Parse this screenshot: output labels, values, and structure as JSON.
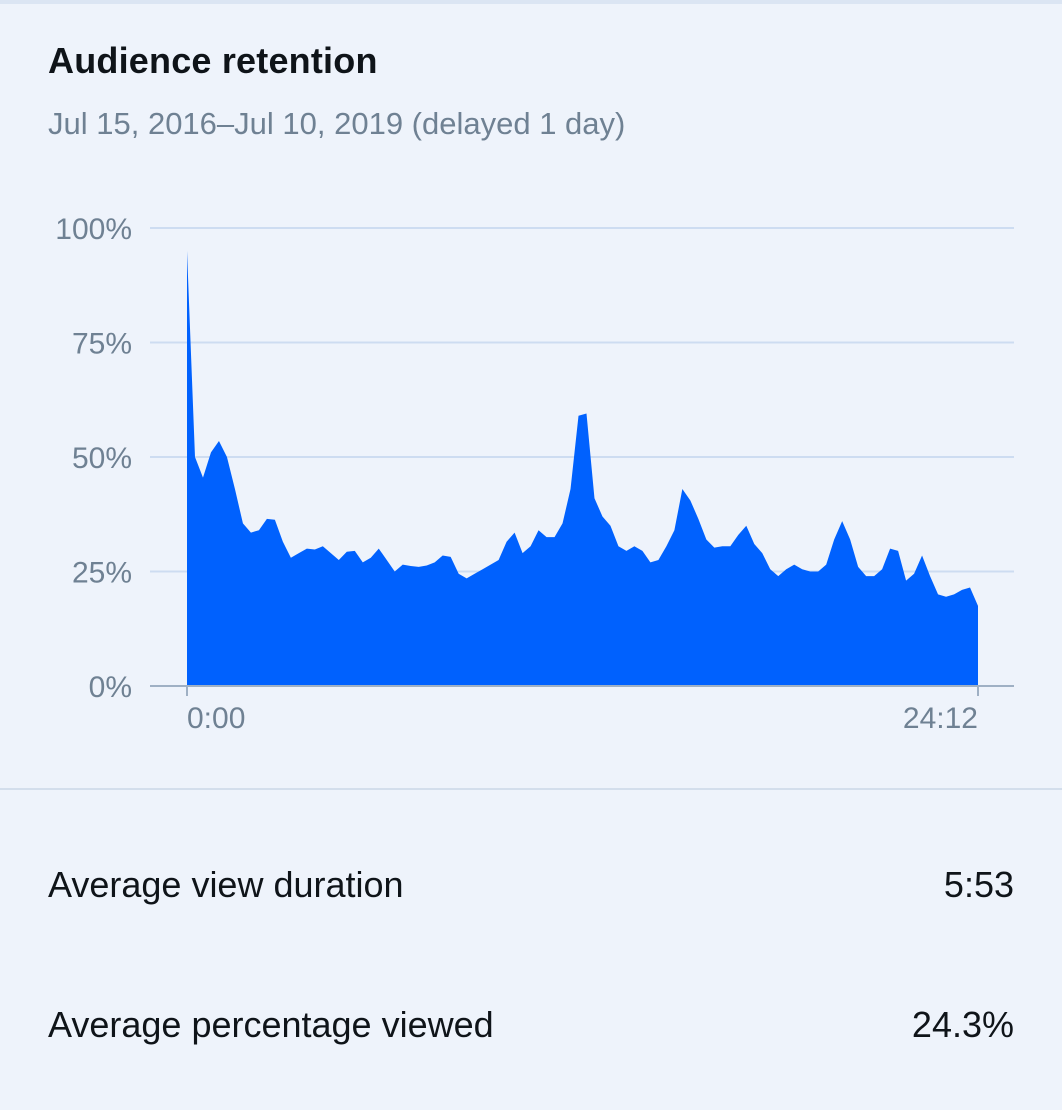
{
  "card": {
    "title": "Audience retention",
    "subtitle": "Jul 15, 2016–Jul 10, 2019 (delayed 1 day)"
  },
  "metrics": [
    {
      "label": "Average view duration",
      "value": "5:53"
    },
    {
      "label": "Average percentage viewed",
      "value": "24.3%"
    }
  ],
  "colors": {
    "area": "#0061fe",
    "grid": "#cddcf1",
    "axis": "#9fb0c4"
  },
  "chart_data": {
    "type": "area",
    "xlabel": "",
    "ylabel": "",
    "ylim": [
      0,
      100
    ],
    "y_ticks": [
      "0%",
      "25%",
      "50%",
      "75%",
      "100%"
    ],
    "y_tick_values": [
      0,
      25,
      50,
      75,
      100
    ],
    "x_tick_labels": [
      "0:00",
      "24:12"
    ],
    "xlim_seconds": [
      0,
      1452
    ],
    "grid": true,
    "series": [
      {
        "values": [
          95,
          50,
          45.5,
          51,
          53.5,
          50,
          43,
          35.5,
          33.5,
          34,
          36.5,
          36.3,
          31.5,
          28,
          29,
          30,
          29.8,
          30.5,
          29,
          27.5,
          29.3,
          29.5,
          27,
          28,
          30,
          27.5,
          25,
          26.5,
          26.2,
          26,
          26.3,
          27,
          28.5,
          28.2,
          24.5,
          23.5,
          24.5,
          25.5,
          26.5,
          27.5,
          31.5,
          33.5,
          29,
          30.5,
          34,
          32.5,
          32.5,
          35.5,
          43,
          59,
          59.5,
          41,
          37,
          35,
          30.5,
          29.5,
          30.5,
          29.5,
          27,
          27.5,
          30.5,
          34,
          43,
          40.5,
          36.5,
          32,
          30.2,
          30.5,
          30.5,
          33,
          35,
          31,
          29,
          25.5,
          24,
          25.5,
          26.5,
          25.5,
          25,
          25,
          26.5,
          32,
          36,
          32,
          26,
          24,
          24,
          25.5,
          30,
          29.5,
          23,
          24.5,
          28.5,
          24,
          20,
          19.5,
          20,
          21,
          21.5,
          17.5
        ]
      }
    ]
  }
}
